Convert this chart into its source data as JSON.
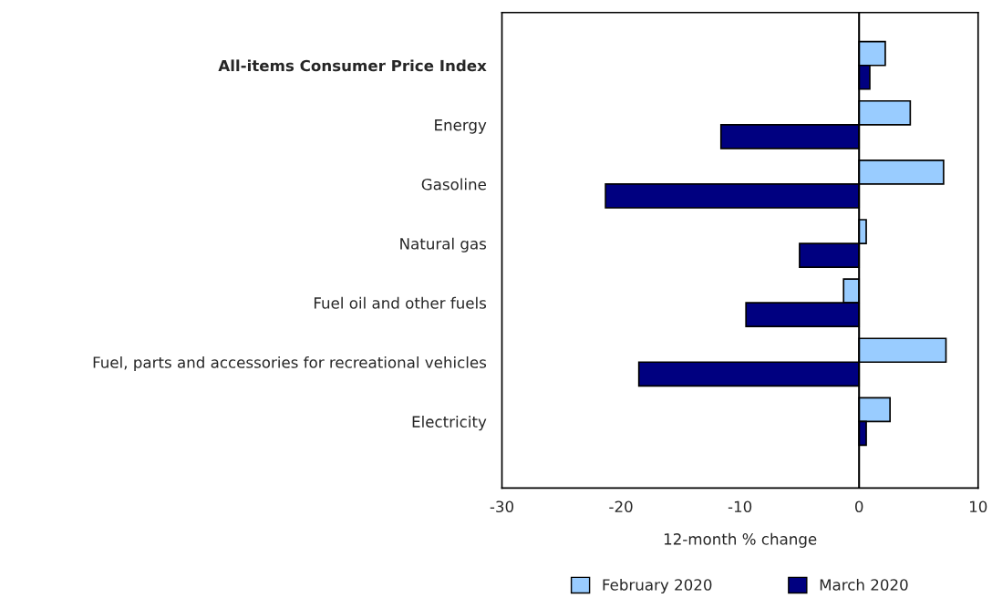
{
  "chart_data": {
    "type": "bar",
    "orientation": "horizontal",
    "xlabel": "12-month % change",
    "categories": [
      "All-items Consumer Price Index",
      "Energy",
      "Gasoline",
      "Natural gas",
      "Fuel oil and other fuels",
      "Fuel, parts and accessories for recreational vehicles",
      "Electricity"
    ],
    "series": [
      {
        "name": "February 2020",
        "color": "#99ccff",
        "values": [
          2.2,
          4.3,
          7.1,
          0.6,
          -1.3,
          7.3,
          2.6
        ]
      },
      {
        "name": "March 2020",
        "color": "#000080",
        "values": [
          0.9,
          -11.6,
          -21.3,
          -5.0,
          -9.5,
          -18.5,
          0.6
        ]
      }
    ],
    "xlim": [
      -30,
      10
    ],
    "xticks": [
      -30,
      -20,
      -10,
      0,
      10
    ],
    "ref_lines": [
      {
        "axis": "x",
        "value": 0
      }
    ],
    "grid": false,
    "legend": "bottom"
  }
}
